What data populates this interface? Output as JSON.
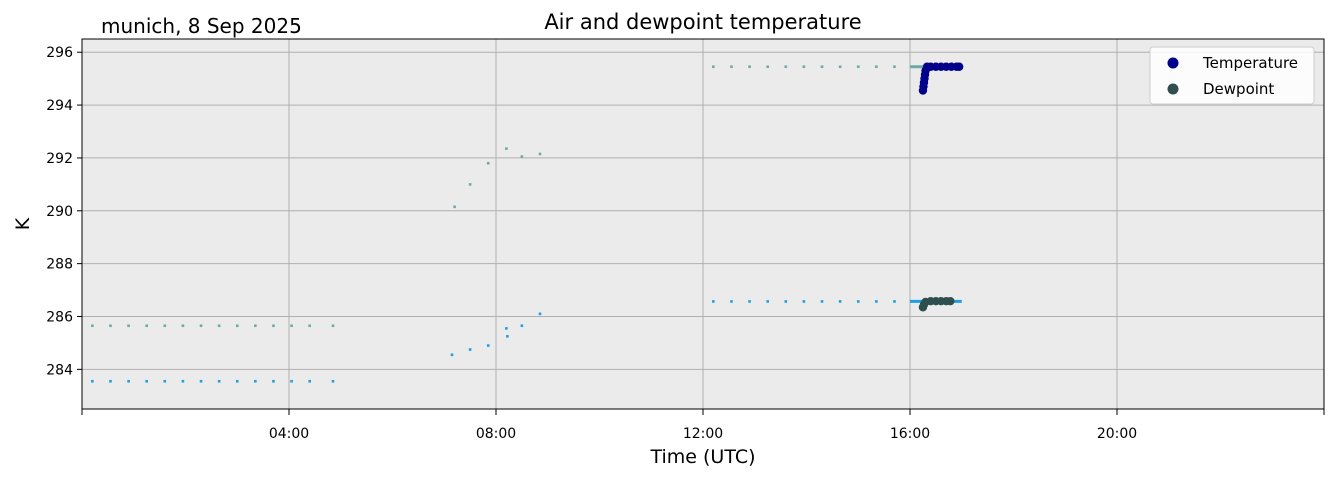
{
  "chart_data": {
    "type": "scatter",
    "title": "Air and dewpoint temperature",
    "subtitle": "munich, 8 Sep 2025",
    "xlabel": "Time (UTC)",
    "ylabel": "K",
    "xlim": [
      0,
      24
    ],
    "ylim": [
      282.5,
      296.5
    ],
    "x_ticks": [
      {
        "value": 4,
        "label": "04:00"
      },
      {
        "value": 8,
        "label": "08:00"
      },
      {
        "value": 12,
        "label": "12:00"
      },
      {
        "value": 16,
        "label": "16:00"
      },
      {
        "value": 20,
        "label": "20:00"
      }
    ],
    "y_ticks": [
      {
        "value": 284,
        "label": "284"
      },
      {
        "value": 286,
        "label": "286"
      },
      {
        "value": 288,
        "label": "288"
      },
      {
        "value": 290,
        "label": "290"
      },
      {
        "value": 292,
        "label": "292"
      },
      {
        "value": 294,
        "label": "294"
      },
      {
        "value": 296,
        "label": "296"
      }
    ],
    "grid": true,
    "legend_position": "top-right",
    "background_color": "#ebebeb",
    "series": [
      {
        "name": "Temperature",
        "color": "#00008b",
        "marker": "circle",
        "points": [
          [
            16.25,
            294.55
          ],
          [
            16.26,
            294.7
          ],
          [
            16.27,
            294.85
          ],
          [
            16.28,
            295.0
          ],
          [
            16.29,
            295.15
          ],
          [
            16.3,
            295.3
          ],
          [
            16.33,
            295.45
          ],
          [
            16.4,
            295.45
          ],
          [
            16.5,
            295.45
          ],
          [
            16.6,
            295.45
          ],
          [
            16.7,
            295.45
          ],
          [
            16.8,
            295.45
          ],
          [
            16.9,
            295.45
          ],
          [
            16.95,
            295.45
          ]
        ]
      },
      {
        "name": "Dewpoint",
        "color": "#2f4f4f",
        "marker": "circle",
        "points": [
          [
            16.25,
            286.35
          ],
          [
            16.27,
            286.45
          ],
          [
            16.3,
            286.55
          ],
          [
            16.4,
            286.58
          ],
          [
            16.5,
            286.58
          ],
          [
            16.6,
            286.58
          ],
          [
            16.7,
            286.58
          ],
          [
            16.78,
            286.58
          ]
        ]
      }
    ],
    "context_series": [
      {
        "color": "#6fa8a8",
        "style": "dotted",
        "points": [
          [
            0.2,
            285.65
          ],
          [
            0.55,
            285.65
          ],
          [
            0.9,
            285.65
          ],
          [
            1.25,
            285.65
          ],
          [
            1.6,
            285.65
          ],
          [
            1.95,
            285.65
          ],
          [
            2.3,
            285.65
          ],
          [
            2.65,
            285.65
          ],
          [
            3.0,
            285.65
          ],
          [
            3.35,
            285.65
          ],
          [
            3.7,
            285.65
          ],
          [
            4.05,
            285.65
          ],
          [
            4.4,
            285.65
          ],
          [
            4.85,
            285.65
          ],
          [
            7.2,
            290.15
          ],
          [
            7.5,
            291.0
          ],
          [
            7.85,
            291.8
          ],
          [
            8.2,
            292.35
          ],
          [
            8.5,
            292.05
          ],
          [
            8.85,
            292.15
          ],
          [
            12.2,
            295.45
          ],
          [
            12.55,
            295.45
          ],
          [
            12.9,
            295.45
          ],
          [
            13.25,
            295.45
          ],
          [
            13.6,
            295.45
          ],
          [
            13.95,
            295.45
          ],
          [
            14.3,
            295.45
          ],
          [
            14.65,
            295.45
          ],
          [
            15.0,
            295.45
          ],
          [
            15.35,
            295.45
          ],
          [
            15.7,
            295.45
          ]
        ],
        "segments": [
          [
            16.0,
            17.0,
            295.45
          ]
        ]
      },
      {
        "color": "#1e9ee6",
        "style": "dotted",
        "points": [
          [
            0.2,
            283.55
          ],
          [
            0.55,
            283.55
          ],
          [
            0.9,
            283.55
          ],
          [
            1.25,
            283.55
          ],
          [
            1.6,
            283.55
          ],
          [
            1.95,
            283.55
          ],
          [
            2.3,
            283.55
          ],
          [
            2.65,
            283.55
          ],
          [
            3.0,
            283.55
          ],
          [
            3.35,
            283.55
          ],
          [
            3.7,
            283.55
          ],
          [
            4.05,
            283.55
          ],
          [
            4.4,
            283.55
          ],
          [
            4.85,
            283.55
          ],
          [
            7.15,
            284.55
          ],
          [
            7.5,
            284.75
          ],
          [
            7.85,
            284.9
          ],
          [
            8.2,
            285.55
          ],
          [
            8.22,
            285.25
          ],
          [
            8.5,
            285.65
          ],
          [
            8.85,
            286.1
          ],
          [
            12.2,
            286.57
          ],
          [
            12.55,
            286.57
          ],
          [
            12.9,
            286.57
          ],
          [
            13.25,
            286.57
          ],
          [
            13.6,
            286.57
          ],
          [
            13.95,
            286.57
          ],
          [
            14.3,
            286.57
          ],
          [
            14.65,
            286.57
          ],
          [
            15.0,
            286.57
          ],
          [
            15.35,
            286.57
          ],
          [
            15.7,
            286.57
          ]
        ],
        "segments": [
          [
            16.0,
            17.0,
            286.57
          ]
        ]
      }
    ]
  }
}
